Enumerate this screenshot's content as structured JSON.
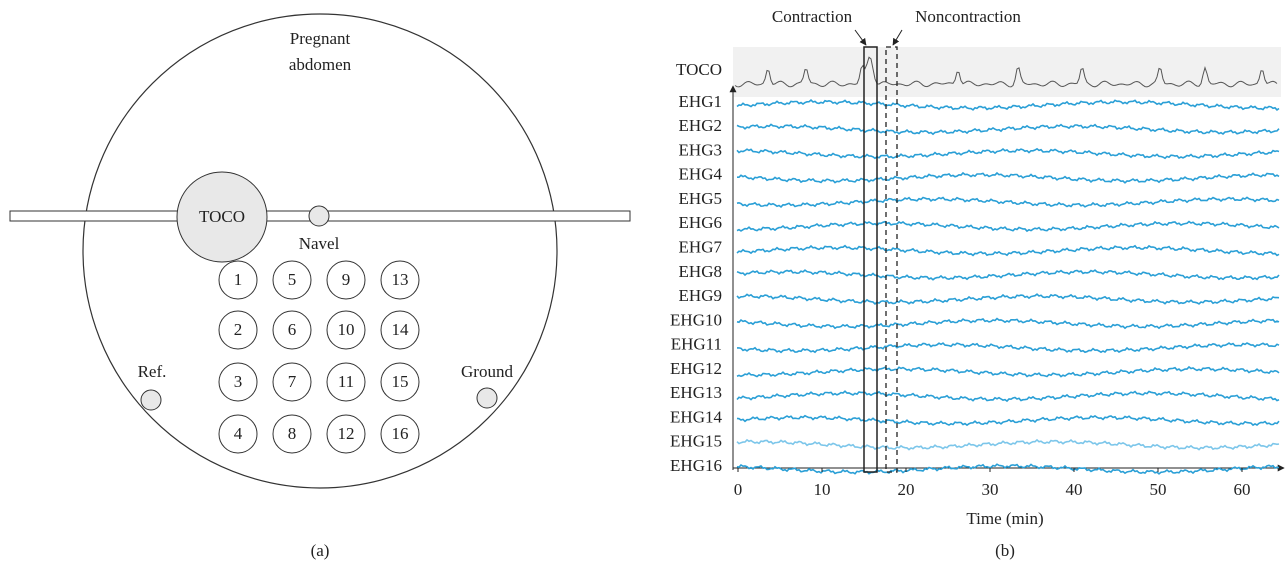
{
  "panel_a": {
    "abdomen_label": [
      "Pregnant",
      "abdomen"
    ],
    "toco": "TOCO",
    "navel": "Navel",
    "electrodes": [
      "1",
      "2",
      "3",
      "4",
      "5",
      "6",
      "7",
      "8",
      "9",
      "10",
      "11",
      "12",
      "13",
      "14",
      "15",
      "16"
    ],
    "reference": "Ref.",
    "ground": "Ground",
    "caption": "(a)"
  },
  "panel_b": {
    "toco_label": "TOCO",
    "contraction": "Contraction",
    "noncontraction": "Noncontraction",
    "channels": [
      "EHG1",
      "EHG2",
      "EHG3",
      "EHG4",
      "EHG5",
      "EHG6",
      "EHG7",
      "EHG8",
      "EHG9",
      "EHG10",
      "EHG11",
      "EHG12",
      "EHG13",
      "EHG14",
      "EHG15",
      "EHG16"
    ],
    "x_ticks": [
      "0",
      "10",
      "20",
      "30",
      "40",
      "50",
      "60"
    ],
    "x_label": "Time (min)",
    "caption": "(b)"
  }
}
